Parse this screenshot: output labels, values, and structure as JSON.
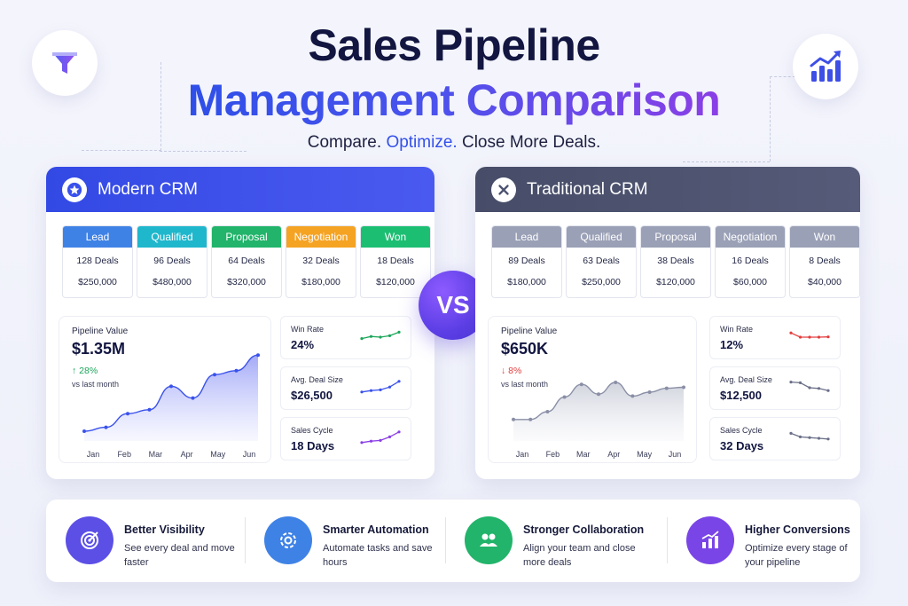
{
  "header": {
    "title_line1": "Sales Pipeline",
    "title_line2": "Management Comparison",
    "tagline_part1": "Compare.",
    "tagline_part2": "Optimize.",
    "tagline_part3": "Close More Deals.",
    "left_badge_icon": "funnel-icon",
    "right_badge_icon": "growth-chart-icon"
  },
  "colors": {
    "modern_head": "#3a52ec",
    "traditional_head": "#4d5370",
    "lead": "#3f82e6",
    "qualified": "#1fb7cc",
    "proposal": "#21b46a",
    "negotiation": "#f5a323",
    "won": "#1cbf72",
    "traditional_stage": "#9aa0b6",
    "positive": "#1ca65a",
    "negative": "#e23d3d"
  },
  "modern": {
    "title": "Modern CRM",
    "icon": "star-icon",
    "stages": [
      {
        "name": "Lead",
        "deals": "128 Deals",
        "value": "$250,000"
      },
      {
        "name": "Qualified",
        "deals": "96 Deals",
        "value": "$480,000"
      },
      {
        "name": "Proposal",
        "deals": "64 Deals",
        "value": "$320,000"
      },
      {
        "name": "Negotiation",
        "deals": "32 Deals",
        "value": "$180,000"
      },
      {
        "name": "Won",
        "deals": "18 Deals",
        "value": "$120,000"
      }
    ],
    "pipeline": {
      "label": "Pipeline Value",
      "value": "$1.35M",
      "change": "↑ 28%",
      "change_sub": "vs last month",
      "months": [
        "Jan",
        "Feb",
        "Mar",
        "Apr",
        "May",
        "Jun"
      ],
      "trend": [
        0.1,
        0.14,
        0.28,
        0.32,
        0.56,
        0.44,
        0.68,
        0.72,
        0.88
      ]
    },
    "metrics": [
      {
        "label": "Win Rate",
        "value": "24%",
        "color": "#1ca65a",
        "trend": [
          0.4,
          0.55,
          0.5,
          0.6,
          0.85
        ]
      },
      {
        "label": "Avg. Deal Size",
        "value": "$26,500",
        "color": "#3a52ec",
        "trend": [
          0.2,
          0.3,
          0.35,
          0.55,
          0.95
        ]
      },
      {
        "label": "Sales Cycle",
        "value": "18 Days",
        "color": "#8a3fe6",
        "trend": [
          0.2,
          0.3,
          0.35,
          0.6,
          0.95
        ]
      }
    ]
  },
  "traditional": {
    "title": "Traditional CRM",
    "icon": "close-icon",
    "stages": [
      {
        "name": "Lead",
        "deals": "89 Deals",
        "value": "$180,000"
      },
      {
        "name": "Qualified",
        "deals": "63 Deals",
        "value": "$250,000"
      },
      {
        "name": "Proposal",
        "deals": "38 Deals",
        "value": "$120,000"
      },
      {
        "name": "Negotiation",
        "deals": "16 Deals",
        "value": "$60,000"
      },
      {
        "name": "Won",
        "deals": "8 Deals",
        "value": "$40,000"
      }
    ],
    "pipeline": {
      "label": "Pipeline Value",
      "value": "$650K",
      "change": "↓ 8%",
      "change_sub": "vs last month",
      "months": [
        "Jan",
        "Feb",
        "Mar",
        "Apr",
        "May",
        "Jun"
      ],
      "trend": [
        0.22,
        0.22,
        0.3,
        0.45,
        0.58,
        0.48,
        0.6,
        0.46,
        0.5,
        0.54,
        0.55
      ]
    },
    "metrics": [
      {
        "label": "Win Rate",
        "value": "12%",
        "color": "#e23d3d",
        "trend": [
          0.8,
          0.5,
          0.5,
          0.5,
          0.52
        ]
      },
      {
        "label": "Avg. Deal Size",
        "value": "$12,500",
        "color": "#6b7088",
        "trend": [
          0.9,
          0.85,
          0.5,
          0.45,
          0.3
        ]
      },
      {
        "label": "Sales Cycle",
        "value": "32 Days",
        "color": "#6b7088",
        "trend": [
          0.85,
          0.6,
          0.55,
          0.5,
          0.45
        ]
      }
    ]
  },
  "benefits": [
    {
      "title": "Better Visibility",
      "desc": "See every deal and move faster",
      "icon": "target-icon",
      "color": "#5b4fe6"
    },
    {
      "title": "Smarter Automation",
      "desc": "Automate tasks and save hours",
      "icon": "automation-gear-icon",
      "color": "#3f82e6"
    },
    {
      "title": "Stronger Collaboration",
      "desc": "Align your team and close more deals",
      "icon": "team-icon",
      "color": "#21b46a"
    },
    {
      "title": "Higher Conversions",
      "desc": "Optimize every stage of your pipeline",
      "icon": "bar-growth-icon",
      "color": "#7a45e6"
    }
  ],
  "vs_label": "VS"
}
